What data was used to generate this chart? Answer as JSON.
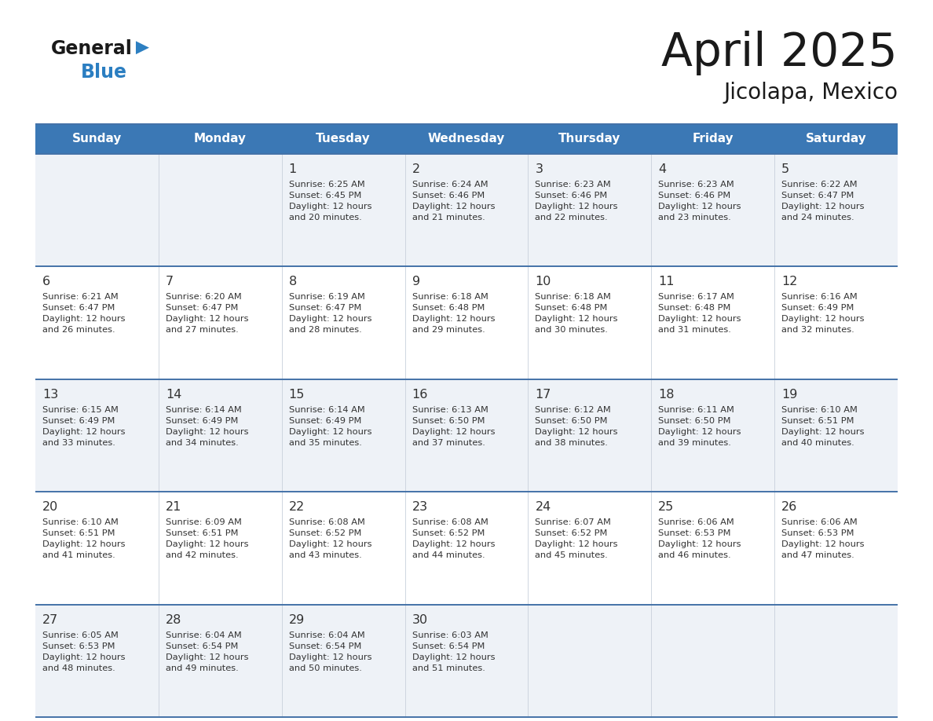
{
  "title": "April 2025",
  "subtitle": "Jicolapa, Mexico",
  "header_bg_color": "#3b78b5",
  "header_text_color": "#ffffff",
  "day_names": [
    "Sunday",
    "Monday",
    "Tuesday",
    "Wednesday",
    "Thursday",
    "Friday",
    "Saturday"
  ],
  "row_bg_colors": [
    "#eef2f7",
    "#ffffff"
  ],
  "cell_border_color": "#4472a8",
  "text_color": "#333333",
  "title_color": "#1a1a1a",
  "logo_general_color": "#1a1a1a",
  "logo_blue_color": "#2b7ec1",
  "logo_triangle_color": "#2b7ec1",
  "calendar_data": [
    [
      {
        "day": "",
        "sunrise": "",
        "sunset": "",
        "daylight": ""
      },
      {
        "day": "",
        "sunrise": "",
        "sunset": "",
        "daylight": ""
      },
      {
        "day": "1",
        "sunrise": "Sunrise: 6:25 AM",
        "sunset": "Sunset: 6:45 PM",
        "daylight": "Daylight: 12 hours\nand 20 minutes."
      },
      {
        "day": "2",
        "sunrise": "Sunrise: 6:24 AM",
        "sunset": "Sunset: 6:46 PM",
        "daylight": "Daylight: 12 hours\nand 21 minutes."
      },
      {
        "day": "3",
        "sunrise": "Sunrise: 6:23 AM",
        "sunset": "Sunset: 6:46 PM",
        "daylight": "Daylight: 12 hours\nand 22 minutes."
      },
      {
        "day": "4",
        "sunrise": "Sunrise: 6:23 AM",
        "sunset": "Sunset: 6:46 PM",
        "daylight": "Daylight: 12 hours\nand 23 minutes."
      },
      {
        "day": "5",
        "sunrise": "Sunrise: 6:22 AM",
        "sunset": "Sunset: 6:47 PM",
        "daylight": "Daylight: 12 hours\nand 24 minutes."
      }
    ],
    [
      {
        "day": "6",
        "sunrise": "Sunrise: 6:21 AM",
        "sunset": "Sunset: 6:47 PM",
        "daylight": "Daylight: 12 hours\nand 26 minutes."
      },
      {
        "day": "7",
        "sunrise": "Sunrise: 6:20 AM",
        "sunset": "Sunset: 6:47 PM",
        "daylight": "Daylight: 12 hours\nand 27 minutes."
      },
      {
        "day": "8",
        "sunrise": "Sunrise: 6:19 AM",
        "sunset": "Sunset: 6:47 PM",
        "daylight": "Daylight: 12 hours\nand 28 minutes."
      },
      {
        "day": "9",
        "sunrise": "Sunrise: 6:18 AM",
        "sunset": "Sunset: 6:48 PM",
        "daylight": "Daylight: 12 hours\nand 29 minutes."
      },
      {
        "day": "10",
        "sunrise": "Sunrise: 6:18 AM",
        "sunset": "Sunset: 6:48 PM",
        "daylight": "Daylight: 12 hours\nand 30 minutes."
      },
      {
        "day": "11",
        "sunrise": "Sunrise: 6:17 AM",
        "sunset": "Sunset: 6:48 PM",
        "daylight": "Daylight: 12 hours\nand 31 minutes."
      },
      {
        "day": "12",
        "sunrise": "Sunrise: 6:16 AM",
        "sunset": "Sunset: 6:49 PM",
        "daylight": "Daylight: 12 hours\nand 32 minutes."
      }
    ],
    [
      {
        "day": "13",
        "sunrise": "Sunrise: 6:15 AM",
        "sunset": "Sunset: 6:49 PM",
        "daylight": "Daylight: 12 hours\nand 33 minutes."
      },
      {
        "day": "14",
        "sunrise": "Sunrise: 6:14 AM",
        "sunset": "Sunset: 6:49 PM",
        "daylight": "Daylight: 12 hours\nand 34 minutes."
      },
      {
        "day": "15",
        "sunrise": "Sunrise: 6:14 AM",
        "sunset": "Sunset: 6:49 PM",
        "daylight": "Daylight: 12 hours\nand 35 minutes."
      },
      {
        "day": "16",
        "sunrise": "Sunrise: 6:13 AM",
        "sunset": "Sunset: 6:50 PM",
        "daylight": "Daylight: 12 hours\nand 37 minutes."
      },
      {
        "day": "17",
        "sunrise": "Sunrise: 6:12 AM",
        "sunset": "Sunset: 6:50 PM",
        "daylight": "Daylight: 12 hours\nand 38 minutes."
      },
      {
        "day": "18",
        "sunrise": "Sunrise: 6:11 AM",
        "sunset": "Sunset: 6:50 PM",
        "daylight": "Daylight: 12 hours\nand 39 minutes."
      },
      {
        "day": "19",
        "sunrise": "Sunrise: 6:10 AM",
        "sunset": "Sunset: 6:51 PM",
        "daylight": "Daylight: 12 hours\nand 40 minutes."
      }
    ],
    [
      {
        "day": "20",
        "sunrise": "Sunrise: 6:10 AM",
        "sunset": "Sunset: 6:51 PM",
        "daylight": "Daylight: 12 hours\nand 41 minutes."
      },
      {
        "day": "21",
        "sunrise": "Sunrise: 6:09 AM",
        "sunset": "Sunset: 6:51 PM",
        "daylight": "Daylight: 12 hours\nand 42 minutes."
      },
      {
        "day": "22",
        "sunrise": "Sunrise: 6:08 AM",
        "sunset": "Sunset: 6:52 PM",
        "daylight": "Daylight: 12 hours\nand 43 minutes."
      },
      {
        "day": "23",
        "sunrise": "Sunrise: 6:08 AM",
        "sunset": "Sunset: 6:52 PM",
        "daylight": "Daylight: 12 hours\nand 44 minutes."
      },
      {
        "day": "24",
        "sunrise": "Sunrise: 6:07 AM",
        "sunset": "Sunset: 6:52 PM",
        "daylight": "Daylight: 12 hours\nand 45 minutes."
      },
      {
        "day": "25",
        "sunrise": "Sunrise: 6:06 AM",
        "sunset": "Sunset: 6:53 PM",
        "daylight": "Daylight: 12 hours\nand 46 minutes."
      },
      {
        "day": "26",
        "sunrise": "Sunrise: 6:06 AM",
        "sunset": "Sunset: 6:53 PM",
        "daylight": "Daylight: 12 hours\nand 47 minutes."
      }
    ],
    [
      {
        "day": "27",
        "sunrise": "Sunrise: 6:05 AM",
        "sunset": "Sunset: 6:53 PM",
        "daylight": "Daylight: 12 hours\nand 48 minutes."
      },
      {
        "day": "28",
        "sunrise": "Sunrise: 6:04 AM",
        "sunset": "Sunset: 6:54 PM",
        "daylight": "Daylight: 12 hours\nand 49 minutes."
      },
      {
        "day": "29",
        "sunrise": "Sunrise: 6:04 AM",
        "sunset": "Sunset: 6:54 PM",
        "daylight": "Daylight: 12 hours\nand 50 minutes."
      },
      {
        "day": "30",
        "sunrise": "Sunrise: 6:03 AM",
        "sunset": "Sunset: 6:54 PM",
        "daylight": "Daylight: 12 hours\nand 51 minutes."
      },
      {
        "day": "",
        "sunrise": "",
        "sunset": "",
        "daylight": ""
      },
      {
        "day": "",
        "sunrise": "",
        "sunset": "",
        "daylight": ""
      },
      {
        "day": "",
        "sunrise": "",
        "sunset": "",
        "daylight": ""
      }
    ]
  ]
}
